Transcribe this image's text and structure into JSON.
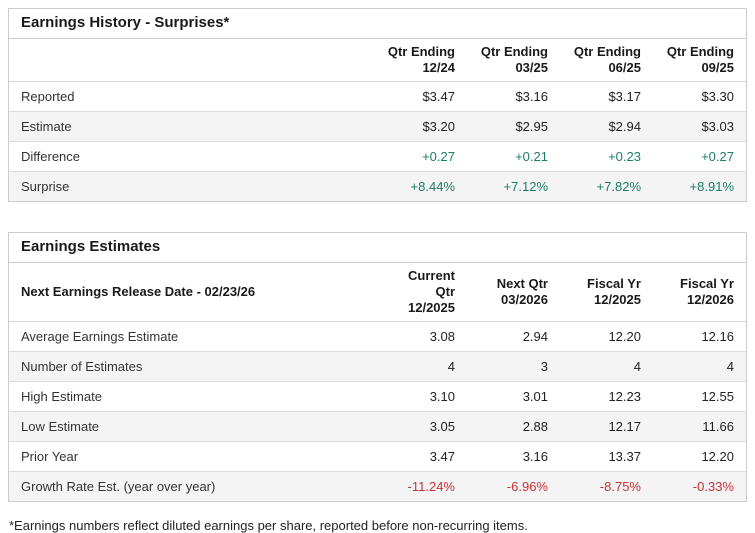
{
  "colors": {
    "positive": "#1d7d64",
    "negative": "#c43236",
    "stripe_bg": "#f4f4f4",
    "border": "#cccccc"
  },
  "earnings_history": {
    "title": "Earnings History - Surprises*",
    "column_headers": [
      {
        "line1": "Qtr Ending",
        "line2": "12/24"
      },
      {
        "line1": "Qtr Ending",
        "line2": "03/25"
      },
      {
        "line1": "Qtr Ending",
        "line2": "06/25"
      },
      {
        "line1": "Qtr Ending",
        "line2": "09/25"
      }
    ],
    "rows": [
      {
        "label": "Reported",
        "values": [
          "$3.47",
          "$3.16",
          "$3.17",
          "$3.30"
        ]
      },
      {
        "label": "Estimate",
        "values": [
          "$3.20",
          "$2.95",
          "$2.94",
          "$3.03"
        ]
      },
      {
        "label": "Difference",
        "values": [
          "+0.27",
          "+0.21",
          "+0.23",
          "+0.27"
        ]
      },
      {
        "label": "Surprise",
        "values": [
          "+8.44%",
          "+7.12%",
          "+7.82%",
          "+8.91%"
        ]
      }
    ]
  },
  "earnings_estimates": {
    "title": "Earnings Estimates",
    "row_header": "Next Earnings Release Date - 02/23/26",
    "column_headers": [
      {
        "line1": "Current Qtr",
        "line2": "12/2025"
      },
      {
        "line1": "Next Qtr",
        "line2": "03/2026"
      },
      {
        "line1": "Fiscal Yr",
        "line2": "12/2025"
      },
      {
        "line1": "Fiscal Yr",
        "line2": "12/2026"
      }
    ],
    "rows": [
      {
        "label": "Average Earnings Estimate",
        "values": [
          "3.08",
          "2.94",
          "12.20",
          "12.16"
        ]
      },
      {
        "label": "Number of Estimates",
        "values": [
          "4",
          "3",
          "4",
          "4"
        ]
      },
      {
        "label": "High Estimate",
        "values": [
          "3.10",
          "3.01",
          "12.23",
          "12.55"
        ]
      },
      {
        "label": "Low Estimate",
        "values": [
          "3.05",
          "2.88",
          "12.17",
          "11.66"
        ]
      },
      {
        "label": "Prior Year",
        "values": [
          "3.47",
          "3.16",
          "13.37",
          "12.20"
        ]
      },
      {
        "label": "Growth Rate Est. (year over year)",
        "values": [
          "-11.24%",
          "-6.96%",
          "-8.75%",
          "-0.33%"
        ]
      }
    ]
  },
  "footnote": "*Earnings numbers reflect diluted earnings per share, reported before non-recurring items."
}
